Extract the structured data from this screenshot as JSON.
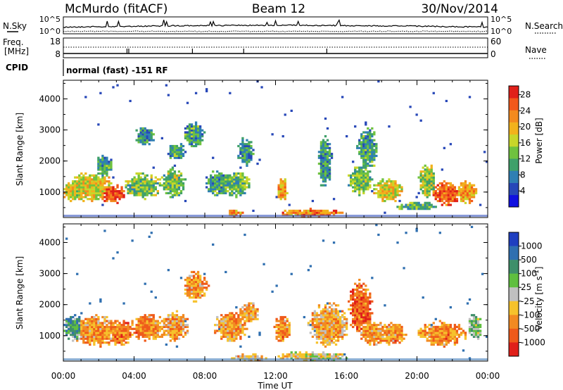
{
  "header": {
    "station": "McMurdo (fitACF)",
    "beam": "Beam 12",
    "date": "30/Nov/2014"
  },
  "top_panels": {
    "nsky_label": "N.Sky",
    "nsearch_label": "N.Search",
    "log_ticks_left": [
      "10^5",
      "10^0"
    ],
    "log_ticks_right": [
      "10^5",
      "10^0"
    ],
    "freq_label_1": "Freq.",
    "freq_label_2": "[MHz]",
    "freq_ticks": [
      "18",
      "8"
    ],
    "nave_label": "Nave",
    "nave_ticks": [
      "60",
      "0"
    ],
    "cpid_label": "CPID",
    "cpid_text": "normal (fast) -151 RF"
  },
  "chart_data": [
    {
      "type": "heatmap",
      "title": "",
      "ylabel": "Slant Range [km]",
      "xlabel": "",
      "ylim": [
        180,
        4600
      ],
      "yticks": [
        "1000",
        "2000",
        "3000",
        "4000"
      ],
      "x_tick_labels": [
        "00:00",
        "04:00",
        "08:00",
        "12:00",
        "16:00",
        "20:00",
        "00:00"
      ],
      "colorbar": {
        "label": "Power [dB]",
        "ticks": [
          "4",
          "8",
          "12",
          "16",
          "20",
          "24",
          "28"
        ],
        "colors": [
          "#1010e0",
          "#2747b8",
          "#2f7fb3",
          "#3fa06a",
          "#6fc23f",
          "#c8d62a",
          "#f2b21c",
          "#f38a1e",
          "#f2581a",
          "#e0201a"
        ]
      },
      "blobs": [
        {
          "t": 0.5,
          "r": 1050,
          "dt": 0.5,
          "dr": 380,
          "v": 0.55
        },
        {
          "t": 1.6,
          "r": 1150,
          "dt": 1.3,
          "dr": 480,
          "v": 0.6
        },
        {
          "t": 2.8,
          "r": 950,
          "dt": 0.7,
          "dr": 320,
          "v": 0.9
        },
        {
          "t": 2.3,
          "r": 1850,
          "dt": 0.5,
          "dr": 380,
          "v": 0.35
        },
        {
          "t": 4.5,
          "r": 1200,
          "dt": 1.1,
          "dr": 420,
          "v": 0.45
        },
        {
          "t": 4.6,
          "r": 2800,
          "dt": 0.6,
          "dr": 300,
          "v": 0.3
        },
        {
          "t": 6.2,
          "r": 1300,
          "dt": 0.7,
          "dr": 480,
          "v": 0.45
        },
        {
          "t": 6.4,
          "r": 2300,
          "dt": 0.5,
          "dr": 300,
          "v": 0.35
        },
        {
          "t": 7.4,
          "r": 2850,
          "dt": 0.6,
          "dr": 420,
          "v": 0.35
        },
        {
          "t": 8.8,
          "r": 1300,
          "dt": 0.8,
          "dr": 400,
          "v": 0.35
        },
        {
          "t": 9.8,
          "r": 1250,
          "dt": 0.8,
          "dr": 400,
          "v": 0.4
        },
        {
          "t": 10.3,
          "r": 2300,
          "dt": 0.5,
          "dr": 450,
          "v": 0.3
        },
        {
          "t": 12.4,
          "r": 1100,
          "dt": 0.3,
          "dr": 420,
          "v": 0.7
        },
        {
          "t": 14.8,
          "r": 2000,
          "dt": 0.4,
          "dr": 900,
          "v": 0.3
        },
        {
          "t": 16.8,
          "r": 1400,
          "dt": 0.7,
          "dr": 500,
          "v": 0.45
        },
        {
          "t": 17.2,
          "r": 2400,
          "dt": 0.6,
          "dr": 700,
          "v": 0.35
        },
        {
          "t": 18.4,
          "r": 1050,
          "dt": 0.9,
          "dr": 380,
          "v": 0.6
        },
        {
          "t": 20.6,
          "r": 1350,
          "dt": 0.5,
          "dr": 550,
          "v": 0.5
        },
        {
          "t": 21.7,
          "r": 950,
          "dt": 0.8,
          "dr": 420,
          "v": 0.85
        },
        {
          "t": 22.8,
          "r": 1000,
          "dt": 0.6,
          "dr": 380,
          "v": 0.7
        },
        {
          "t": 14.0,
          "r": 330,
          "dt": 1.8,
          "dr": 130,
          "v": 0.75
        },
        {
          "t": 9.7,
          "r": 320,
          "dt": 0.5,
          "dr": 120,
          "v": 0.7
        },
        {
          "t": 20.0,
          "r": 550,
          "dt": 1.2,
          "dr": 150,
          "v": 0.4
        }
      ]
    },
    {
      "type": "heatmap",
      "title": "",
      "ylabel": "Slant Range [km]",
      "xlabel": "Time UT",
      "ylim": [
        180,
        4600
      ],
      "yticks": [
        "1000",
        "2000",
        "3000",
        "4000"
      ],
      "x_tick_labels": [
        "00:00",
        "04:00",
        "08:00",
        "12:00",
        "16:00",
        "20:00",
        "00:00"
      ],
      "colorbar": {
        "label": "Velocity [m s^-1]",
        "ticks": [
          "1000",
          "500",
          "100",
          "25",
          "-25",
          "-100",
          "-500",
          "-1000"
        ],
        "colors": [
          "#1f3fc0",
          "#2f6fb0",
          "#3f8f6a",
          "#5fbf3f",
          "#c0c0c0",
          "#f6c22c",
          "#f28a22",
          "#ef5a1a",
          "#e0201a"
        ]
      },
      "blobs": [
        {
          "t": 0.6,
          "r": 1250,
          "dt": 0.6,
          "dr": 450,
          "v": 0.3
        },
        {
          "t": 1.8,
          "r": 1150,
          "dt": 1.5,
          "dr": 500,
          "v": 0.7
        },
        {
          "t": 3.2,
          "r": 1100,
          "dt": 0.8,
          "dr": 420,
          "v": 0.75
        },
        {
          "t": 4.8,
          "r": 1250,
          "dt": 1.0,
          "dr": 450,
          "v": 0.72
        },
        {
          "t": 6.3,
          "r": 1300,
          "dt": 0.8,
          "dr": 500,
          "v": 0.68
        },
        {
          "t": 7.5,
          "r": 2600,
          "dt": 0.7,
          "dr": 500,
          "v": 0.7
        },
        {
          "t": 9.5,
          "r": 1300,
          "dt": 1.0,
          "dr": 500,
          "v": 0.7
        },
        {
          "t": 10.5,
          "r": 1750,
          "dt": 0.6,
          "dr": 350,
          "v": 0.68
        },
        {
          "t": 12.4,
          "r": 1200,
          "dt": 0.5,
          "dr": 450,
          "v": 0.72
        },
        {
          "t": 15.0,
          "r": 1350,
          "dt": 1.2,
          "dr": 700,
          "v": 0.65
        },
        {
          "t": 16.8,
          "r": 1900,
          "dt": 0.7,
          "dr": 900,
          "v": 0.82
        },
        {
          "t": 17.5,
          "r": 1100,
          "dt": 0.8,
          "dr": 400,
          "v": 0.7
        },
        {
          "t": 18.6,
          "r": 1050,
          "dt": 0.8,
          "dr": 380,
          "v": 0.72
        },
        {
          "t": 21.4,
          "r": 1050,
          "dt": 1.4,
          "dr": 420,
          "v": 0.72
        },
        {
          "t": 23.3,
          "r": 1300,
          "dt": 0.4,
          "dr": 450,
          "v": 0.4
        },
        {
          "t": 14.0,
          "r": 330,
          "dt": 2.2,
          "dr": 150,
          "v": 0.55
        },
        {
          "t": 10.5,
          "r": 300,
          "dt": 1.2,
          "dr": 110,
          "v": 0.62
        }
      ]
    }
  ]
}
